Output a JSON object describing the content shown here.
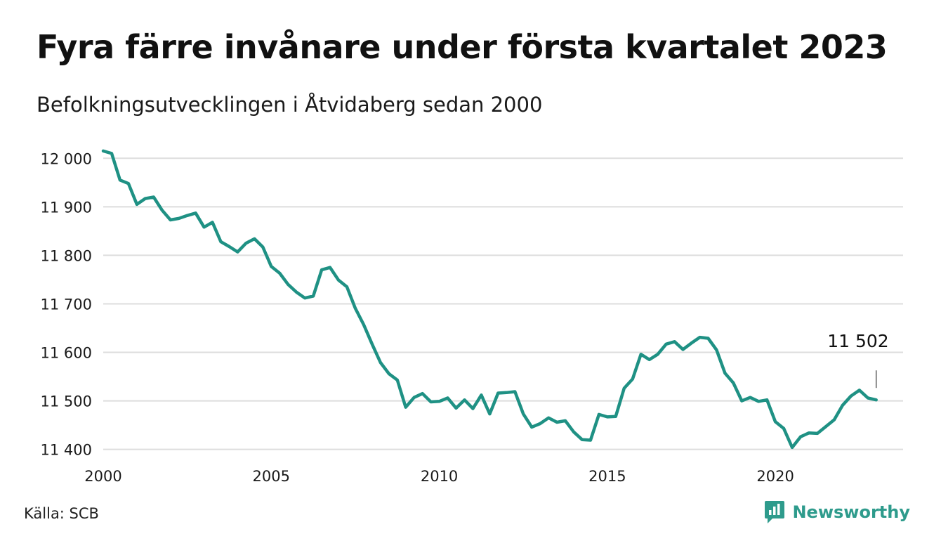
{
  "title": "Fyra färre invånare under första kvartalet 2023",
  "subtitle": "Befolkningsutvecklingen i Åtvidaberg sedan 2000",
  "source": "Källa: SCB",
  "brand": {
    "name": "Newsworthy",
    "icon": "newsworthy-logo-icon",
    "color": "#2e9b8c"
  },
  "colors": {
    "line": "#1f9184",
    "grid": "#dddddd",
    "axis_text": "#1a1a1a"
  },
  "chart_data": {
    "type": "line",
    "title": "Fyra färre invånare under första kvartalet 2023",
    "subtitle": "Befolkningsutvecklingen i Åtvidaberg sedan 2000",
    "xlabel": "",
    "ylabel": "",
    "xlim": [
      2000,
      2023.8
    ],
    "ylim": [
      11385,
      12025
    ],
    "grid": "horizontal",
    "legend": "none",
    "x_ticks": [
      2000,
      2005,
      2010,
      2015,
      2020
    ],
    "x_tick_labels": [
      "2000",
      "2005",
      "2010",
      "2015",
      "2020"
    ],
    "y_ticks": [
      11400,
      11500,
      11600,
      11700,
      11800,
      11900,
      12000
    ],
    "y_tick_labels": [
      "11 400",
      "11 500",
      "11 600",
      "11 700",
      "11 800",
      "11 900",
      "12 000"
    ],
    "annotation": {
      "text": "11 502",
      "x": 2023.0,
      "y": 11502
    },
    "series": [
      {
        "x": [
          2000.0,
          2000.25,
          2000.5,
          2000.75,
          2001.0,
          2001.25,
          2001.5,
          2001.75,
          2002.0,
          2002.25,
          2002.5,
          2002.75,
          2003.0,
          2003.25,
          2003.5,
          2003.75,
          2004.0,
          2004.25,
          2004.5,
          2004.75,
          2005.0,
          2005.25,
          2005.5,
          2005.75,
          2006.0,
          2006.25,
          2006.5,
          2006.75,
          2007.0,
          2007.25,
          2007.5,
          2007.75,
          2008.0,
          2008.25,
          2008.5,
          2008.75,
          2009.0,
          2009.25,
          2009.5,
          2009.75,
          2010.0,
          2010.25,
          2010.5,
          2010.75,
          2011.0,
          2011.25,
          2011.5,
          2011.75,
          2012.0,
          2012.25,
          2012.5,
          2012.75,
          2013.0,
          2013.25,
          2013.5,
          2013.75,
          2014.0,
          2014.25,
          2014.5,
          2014.75,
          2015.0,
          2015.25,
          2015.5,
          2015.75,
          2016.0,
          2016.25,
          2016.5,
          2016.75,
          2017.0,
          2017.25,
          2017.5,
          2017.75,
          2018.0,
          2018.25,
          2018.5,
          2018.75,
          2019.0,
          2019.25,
          2019.5,
          2019.75,
          2020.0,
          2020.25,
          2020.5,
          2020.75,
          2021.0,
          2021.25,
          2021.5,
          2021.75,
          2022.0,
          2022.25,
          2022.5,
          2022.75,
          2023.0
        ],
        "values": [
          12015,
          12010,
          11955,
          11948,
          11905,
          11917,
          11920,
          11893,
          11873,
          11876,
          11882,
          11887,
          11858,
          11868,
          11828,
          11818,
          11807,
          11825,
          11834,
          11817,
          11777,
          11763,
          11740,
          11724,
          11712,
          11716,
          11770,
          11775,
          11749,
          11735,
          11691,
          11657,
          11617,
          11579,
          11556,
          11543,
          11487,
          11507,
          11515,
          11498,
          11499,
          11506,
          11485,
          11502,
          11484,
          11512,
          11473,
          11516,
          11517,
          11519,
          11473,
          11446,
          11453,
          11465,
          11456,
          11459,
          11436,
          11420,
          11419,
          11472,
          11467,
          11468,
          11526,
          11545,
          11596,
          11585,
          11596,
          11617,
          11622,
          11606,
          11619,
          11631,
          11629,
          11605,
          11557,
          11537,
          11500,
          11507,
          11499,
          11502,
          11457,
          11443,
          11404,
          11426,
          11434,
          11433,
          11447,
          11461,
          11491,
          11510,
          11522,
          11506,
          11502
        ]
      }
    ]
  }
}
